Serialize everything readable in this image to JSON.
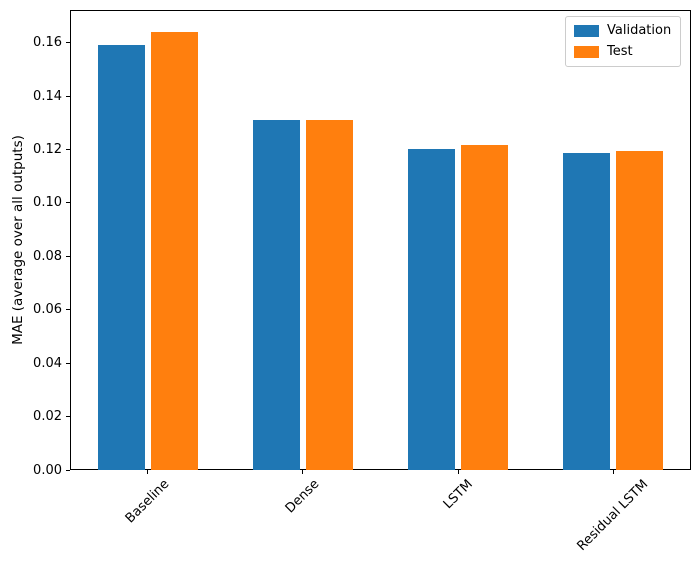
{
  "chart_data": {
    "type": "bar",
    "title": "",
    "xlabel": "",
    "ylabel": "MAE (average over all outputs)",
    "categories": [
      "Baseline",
      "Dense",
      "LSTM",
      "Residual LSTM"
    ],
    "series": [
      {
        "name": "Validation",
        "color": "#1f77b4",
        "values": [
          0.159,
          0.131,
          0.12,
          0.1185
        ]
      },
      {
        "name": "Test",
        "color": "#ff7f0e",
        "values": [
          0.164,
          0.131,
          0.1215,
          0.1195
        ]
      }
    ],
    "ylim": [
      0,
      0.1722
    ],
    "yticks": [
      0.0,
      0.02,
      0.04,
      0.06,
      0.08,
      0.1,
      0.12,
      0.14,
      0.16
    ],
    "ytick_labels": [
      "0.00",
      "0.02",
      "0.04",
      "0.06",
      "0.08",
      "0.10",
      "0.12",
      "0.14",
      "0.16"
    ],
    "x_tick_rotation": 45,
    "grid": false,
    "legend_position": "upper right",
    "colors": {
      "spine": "#000000",
      "legend_border": "#cccccc",
      "background": "#ffffff"
    }
  }
}
